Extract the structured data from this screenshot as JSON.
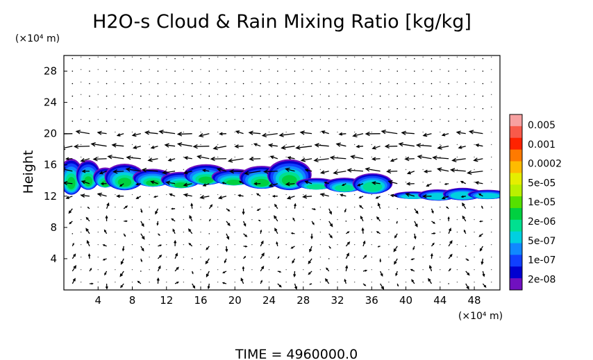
{
  "chart_data": {
    "type": "contour",
    "title": "H2O-s Cloud & Rain Mixing Ratio [kg/kg]",
    "ylabel": "Height",
    "y_unit": "(×10⁴ m)",
    "x_unit": "(×10⁴ m)",
    "footer": "TIME  =  4960000.0",
    "xlim": [
      0,
      51
    ],
    "ylim": [
      0,
      30
    ],
    "x_ticks": [
      4,
      8,
      12,
      16,
      20,
      24,
      28,
      32,
      36,
      40,
      44,
      48
    ],
    "y_ticks": [
      4,
      8,
      12,
      16,
      20,
      24,
      28
    ],
    "colorbar": {
      "labels": [
        "0.005",
        "0.001",
        "0.0002",
        "5e-05",
        "1e-05",
        "2e-06",
        "5e-07",
        "1e-07",
        "2e-08"
      ],
      "colors": [
        "#f7a1a1",
        "#f85a4a",
        "#ff2200",
        "#ff7a00",
        "#ffbb00",
        "#e5ee00",
        "#b9f000",
        "#55e000",
        "#00d040",
        "#00e090",
        "#00d0e0",
        "#1088ff",
        "#1040ff",
        "#0000d0",
        "#7010c0"
      ]
    },
    "cloud_regions": [
      {
        "x0": 0.2,
        "x1": 5.5,
        "y0": 12.2,
        "y1": 16.8,
        "level": "5e-05"
      },
      {
        "x0": 6.0,
        "x1": 14.8,
        "y0": 12.4,
        "y1": 16.2,
        "level": "5e-05"
      },
      {
        "x0": 15.0,
        "x1": 28.0,
        "y0": 12.6,
        "y1": 16.6,
        "level": "5e-05"
      },
      {
        "x0": 28.4,
        "x1": 37.2,
        "y0": 12.2,
        "y1": 15.0,
        "level": "2e-06"
      },
      {
        "x0": 39.4,
        "x1": 51.0,
        "y0": 11.4,
        "y1": 13.0,
        "level": "5e-07"
      }
    ]
  }
}
